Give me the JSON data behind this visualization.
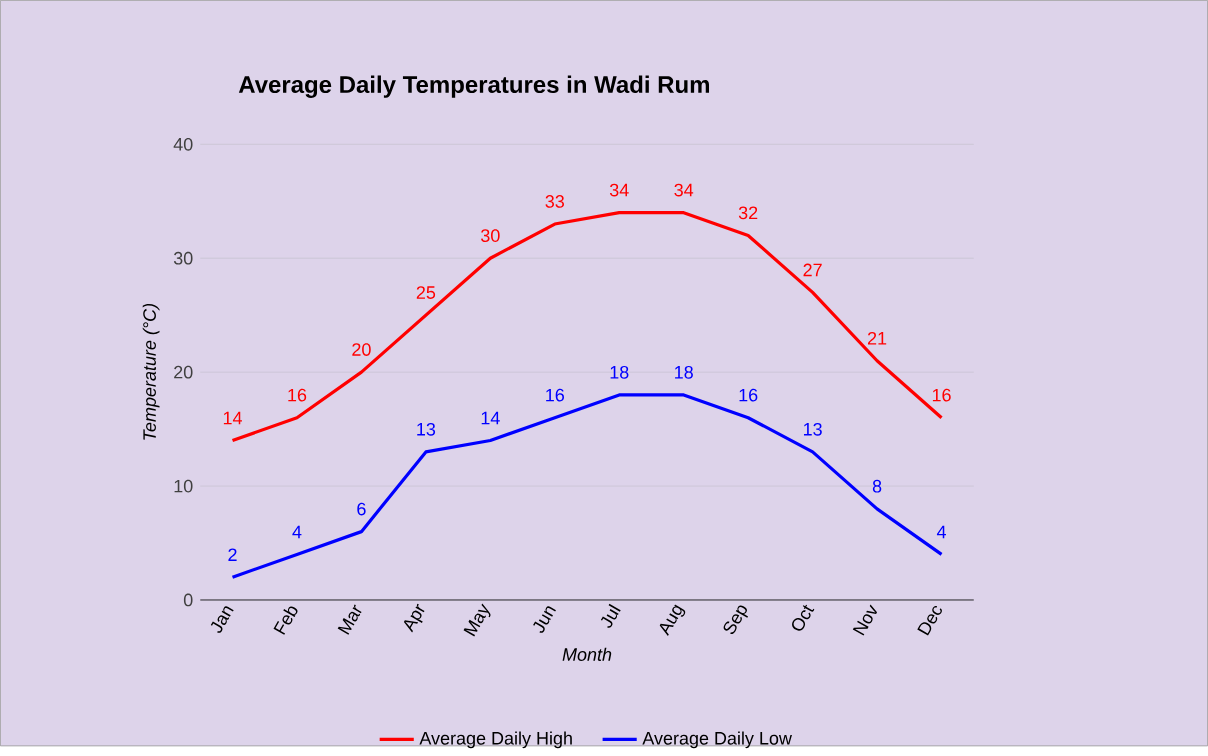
{
  "chart_data": {
    "type": "line",
    "title": "Average Daily Temperatures in Wadi Rum",
    "xlabel": "Month",
    "ylabel": "Temperature (°C)",
    "categories": [
      "Jan",
      "Feb",
      "Mar",
      "Apr",
      "May",
      "Jun",
      "Jul",
      "Aug",
      "Sep",
      "Oct",
      "Nov",
      "Dec"
    ],
    "series": [
      {
        "name": "Average Daily High",
        "color": "#ff0000",
        "values": [
          14,
          16,
          20,
          25,
          30,
          33,
          34,
          34,
          32,
          27,
          21,
          16
        ]
      },
      {
        "name": "Average Daily Low",
        "color": "#0000ff",
        "values": [
          2,
          4,
          6,
          13,
          14,
          16,
          18,
          18,
          16,
          13,
          8,
          4
        ]
      }
    ],
    "ylim": [
      0,
      40
    ],
    "yticks": [
      0,
      10,
      20,
      30,
      40
    ],
    "grid": "y",
    "legend": "bottom",
    "data_labels": true,
    "marker": "none",
    "line_style": "solid"
  }
}
